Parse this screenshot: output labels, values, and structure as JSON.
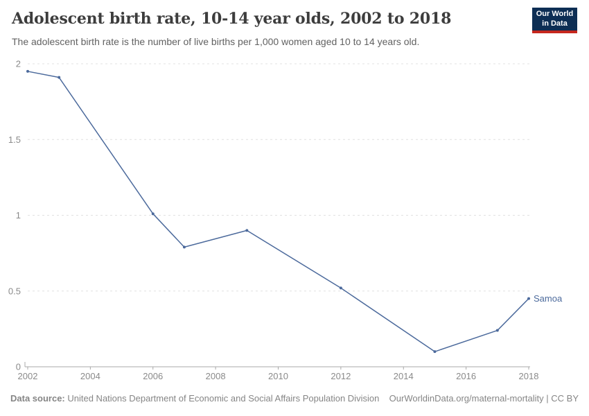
{
  "header": {
    "title": "Adolescent birth rate, 10-14 year olds, 2002 to 2018",
    "subtitle": "The adolescent birth rate is the number of live births per 1,000 women aged 10 to 14 years old."
  },
  "logo": {
    "line1": "Our World",
    "line2": "in Data",
    "bg_color": "#0d2e54",
    "stripe_color": "#c6271e"
  },
  "chart_data": {
    "type": "line",
    "title": "Adolescent birth rate, 10-14 year olds, 2002 to 2018",
    "x": [
      2002,
      2003,
      2006,
      2007,
      2009,
      2012,
      2015,
      2017,
      2018
    ],
    "series": [
      {
        "name": "Samoa",
        "values": [
          1.95,
          1.91,
          1.01,
          0.79,
          0.9,
          0.52,
          0.1,
          0.24,
          0.45
        ],
        "color": "#4c6a9c"
      }
    ],
    "xlabel": "",
    "ylabel": "",
    "xlim": [
      2002,
      2018
    ],
    "ylim": [
      0,
      2
    ],
    "xticks": [
      2002,
      2004,
      2006,
      2008,
      2010,
      2012,
      2014,
      2016,
      2018
    ],
    "yticks": [
      0,
      0.5,
      1,
      1.5,
      2
    ],
    "grid": "horizontal-dashed",
    "legend": "entity-label-at-line-end",
    "entity_label": "Samoa",
    "colors": {
      "grid": "#e0e0e0",
      "axis": "#a8a8a8",
      "tick_label": "#8a8a8a"
    }
  },
  "footer": {
    "datasource_label": "Data source:",
    "datasource_text": " United Nations Department of Economic and Social Affairs Population Division",
    "link_text": "OurWorldinData.org/maternal-mortality | CC BY"
  }
}
